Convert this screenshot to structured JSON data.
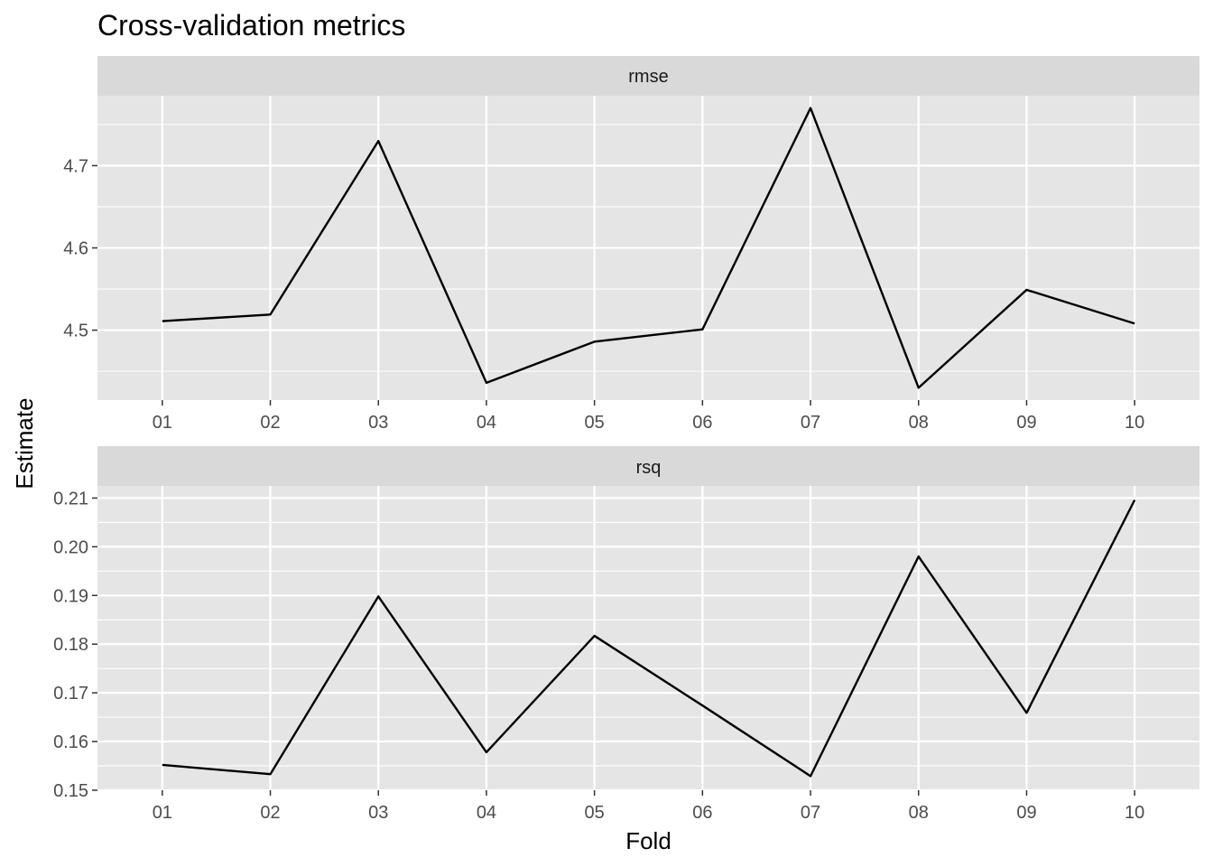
{
  "chart_data": {
    "type": "line",
    "title": "Cross-validation metrics",
    "xlabel": "Fold",
    "ylabel": "Estimate",
    "grid": true,
    "legend": "none",
    "categories": [
      "01",
      "02",
      "03",
      "04",
      "05",
      "06",
      "07",
      "08",
      "09",
      "10"
    ],
    "line_color": "#000000",
    "panel_background": "#e5e5e5",
    "strip_background": "#d9d9d9",
    "grid_color": "#ffffff",
    "facets": [
      {
        "name": "rmse",
        "ylim": [
          4.415,
          4.785
        ],
        "yticks": [
          "4.5",
          "4.6",
          "4.7"
        ],
        "ytick_values": [
          4.5,
          4.6,
          4.7
        ],
        "values": [
          4.511,
          4.519,
          4.73,
          4.436,
          4.486,
          4.501,
          4.77,
          4.43,
          4.549,
          4.508
        ]
      },
      {
        "name": "rsq",
        "ylim": [
          0.15,
          0.2125
        ],
        "yticks": [
          "0.15",
          "0.16",
          "0.17",
          "0.18",
          "0.19",
          "0.20",
          "0.21"
        ],
        "ytick_values": [
          0.15,
          0.16,
          0.17,
          0.18,
          0.19,
          0.2,
          0.21
        ],
        "values": [
          0.1552,
          0.1533,
          0.1898,
          0.1578,
          0.1817,
          0.1674,
          0.1529,
          0.198,
          0.1659,
          0.2096
        ]
      }
    ]
  }
}
